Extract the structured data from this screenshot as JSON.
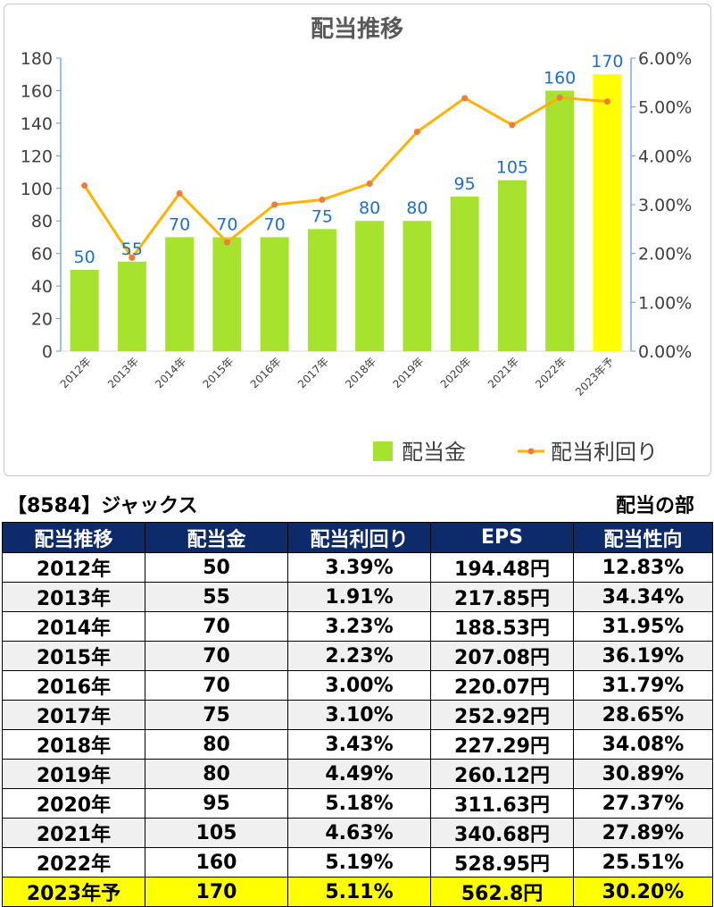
{
  "chart_data": {
    "type": "bar",
    "title": "配当推移",
    "categories": [
      "2012年",
      "2013年",
      "2014年",
      "2015年",
      "2016年",
      "2017年",
      "2018年",
      "2019年",
      "2020年",
      "2021年",
      "2022年",
      "2023年予"
    ],
    "series": [
      {
        "name": "配当金",
        "type": "bar",
        "axis": "left",
        "color": "#a6e22e",
        "highlight_color": "#ffff00",
        "values": [
          50,
          55,
          70,
          70,
          70,
          75,
          80,
          80,
          95,
          105,
          160,
          170
        ]
      },
      {
        "name": "配当利回り",
        "type": "line",
        "axis": "right",
        "color": "#ffb300",
        "marker_color": "#f07b3f",
        "values": [
          3.39,
          1.91,
          3.23,
          2.23,
          3.0,
          3.1,
          3.43,
          4.49,
          5.18,
          4.63,
          5.19,
          5.11
        ]
      }
    ],
    "ylim": [
      0,
      180
    ],
    "y_ticks": [
      "0",
      "20",
      "40",
      "60",
      "80",
      "100",
      "120",
      "140",
      "160",
      "180"
    ],
    "y2lim": [
      0,
      6
    ],
    "y2_ticks": [
      "0.00%",
      "1.00%",
      "2.00%",
      "3.00%",
      "4.00%",
      "5.00%",
      "6.00%"
    ],
    "data_labels": [
      "50",
      "55",
      "70",
      "70",
      "70",
      "75",
      "80",
      "80",
      "95",
      "105",
      "160",
      "170"
    ],
    "label_color": "#1f6fc5",
    "axis_color": "#5b9bd5",
    "legend_position": "bottom-right",
    "grid": false
  },
  "table": {
    "company_title": "【8584】ジャックス",
    "section_label": "配当の部",
    "headers": [
      "配当推移",
      "配当金",
      "配当利回り",
      "EPS",
      "配当性向"
    ],
    "rows": [
      [
        "2012年",
        "50",
        "3.39%",
        "194.48円",
        "12.83%"
      ],
      [
        "2013年",
        "55",
        "1.91%",
        "217.85円",
        "34.34%"
      ],
      [
        "2014年",
        "70",
        "3.23%",
        "188.53円",
        "31.95%"
      ],
      [
        "2015年",
        "70",
        "2.23%",
        "207.08円",
        "36.19%"
      ],
      [
        "2016年",
        "70",
        "3.00%",
        "220.07円",
        "31.79%"
      ],
      [
        "2017年",
        "75",
        "3.10%",
        "252.92円",
        "28.65%"
      ],
      [
        "2018年",
        "80",
        "3.43%",
        "227.29円",
        "34.08%"
      ],
      [
        "2019年",
        "80",
        "4.49%",
        "260.12円",
        "30.89%"
      ],
      [
        "2020年",
        "95",
        "5.18%",
        "311.63円",
        "27.37%"
      ],
      [
        "2021年",
        "105",
        "4.63%",
        "340.68円",
        "27.89%"
      ],
      [
        "2022年",
        "160",
        "5.19%",
        "528.95円",
        "25.51%"
      ],
      [
        "2023年予",
        "170",
        "5.11%",
        "562.8円",
        "30.20%"
      ]
    ],
    "highlight_row": 11,
    "header_color": "#0d2a6b",
    "highlight_color": "#ffff00"
  }
}
